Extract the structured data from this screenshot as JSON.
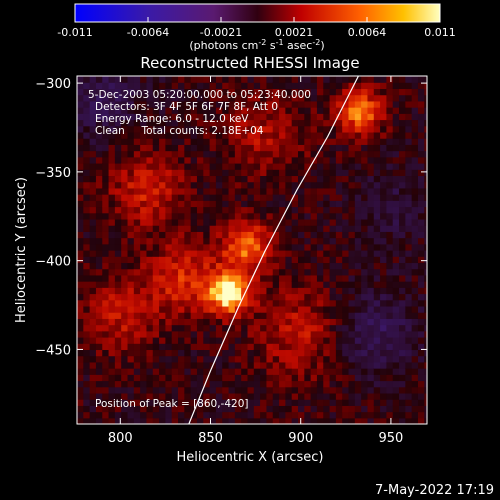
{
  "chart_data": {
    "type": "heatmap",
    "title": "Reconstructed RHESSI Image",
    "xlabel": "Heliocentric X (arcsec)",
    "ylabel": "Heliocentric Y (arcsec)",
    "xlim": [
      776,
      970
    ],
    "ylim": [
      -492,
      -296
    ],
    "x_ticks": [
      800,
      850,
      900,
      950
    ],
    "y_ticks": [
      -300,
      -350,
      -400,
      -450
    ],
    "colorbar": {
      "ticks": [
        "-0.011",
        "-0.0064",
        "-0.0021",
        "0.0021",
        "0.0064",
        "0.011"
      ],
      "range": [
        -0.011,
        0.011
      ],
      "units_label": "(photons cm",
      "units_exp1": "-2",
      "units_mid": " s",
      "units_exp2": "-1",
      "units_end": " asec",
      "units_exp3": "-2",
      "units_close": ")"
    },
    "info": [
      "5-Dec-2003 05:20:00.000 to 05:23:40.000",
      "Detectors: 3F 4F 5F 6F 7F 8F, Att 0",
      "Energy Range: 6.0 - 12.0 keV",
      "Clean     Total counts: 2.18E+04"
    ],
    "peak_label": "Position of Peak = [860,-420]",
    "peak": {
      "x": 860,
      "y": -420
    },
    "limb_points": [
      [
        838,
        -492
      ],
      [
        850,
        -462
      ],
      [
        866,
        -425
      ],
      [
        880,
        -395
      ],
      [
        898,
        -360
      ],
      [
        915,
        -330
      ],
      [
        932,
        -296
      ]
    ],
    "sources": [
      {
        "x": 860,
        "y": -418,
        "amp": 1.0,
        "sigma": 8
      },
      {
        "x": 870,
        "y": -392,
        "amp": 0.65,
        "sigma": 10
      },
      {
        "x": 933,
        "y": -316,
        "amp": 0.7,
        "sigma": 9
      },
      {
        "x": 835,
        "y": -410,
        "amp": 0.45,
        "sigma": 14
      },
      {
        "x": 815,
        "y": -360,
        "amp": 0.4,
        "sigma": 15
      },
      {
        "x": 800,
        "y": -430,
        "amp": 0.35,
        "sigma": 15
      },
      {
        "x": 900,
        "y": -440,
        "amp": 0.35,
        "sigma": 18
      },
      {
        "x": 880,
        "y": -330,
        "amp": 0.3,
        "sigma": 16
      },
      {
        "x": 940,
        "y": -440,
        "amp": -0.35,
        "sigma": 16
      },
      {
        "x": 790,
        "y": -310,
        "amp": -0.3,
        "sigma": 14
      },
      {
        "x": 950,
        "y": -370,
        "amp": -0.2,
        "sigma": 14
      }
    ]
  },
  "footer": {
    "date": "7-May-2022 17:19"
  }
}
